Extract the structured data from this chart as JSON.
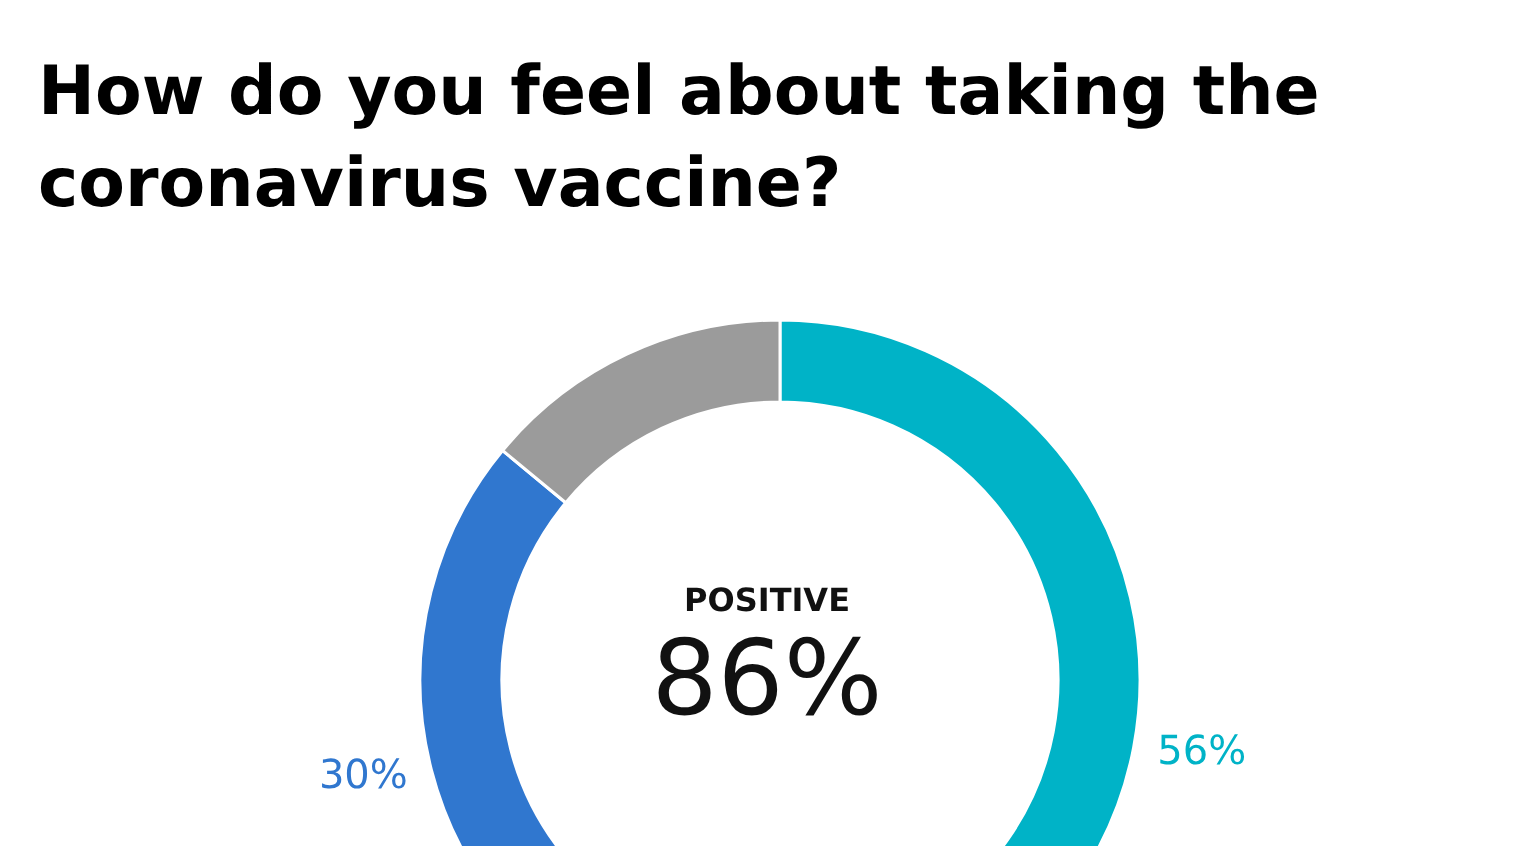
{
  "chart_data": {
    "type": "donut",
    "title": "How do you feel about taking the coronavirus vaccine?",
    "categories": [
      null,
      null,
      null
    ],
    "values": [
      56,
      30,
      14
    ],
    "colors": [
      "#00b3c7",
      "#3077cf",
      "#9b9b9b"
    ],
    "value_labels": [
      "56%",
      "30%",
      null
    ],
    "annotations": [
      "POSITIVE",
      "86%"
    ]
  }
}
